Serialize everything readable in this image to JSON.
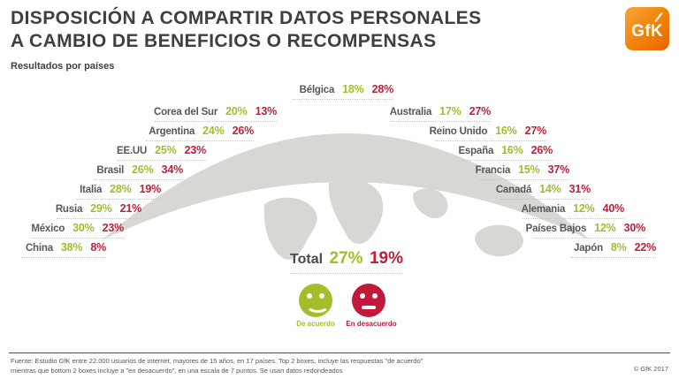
{
  "header": {
    "title_line1": "DISPOSICIÓN A COMPARTIR DATOS PERSONALES",
    "title_line2": "A CAMBIO DE BENEFICIOS O RECOMPENSAS",
    "subtitle": "Resultados por países",
    "logo_text": "GfK"
  },
  "chart_data": {
    "type": "table",
    "title": "Disposición a compartir datos personales a cambio de beneficios o recompensas",
    "subtitle": "Resultados por países",
    "unit": "%",
    "categories": [
      "Bélgica",
      "Corea del Sur",
      "Argentina",
      "EE.UU",
      "Brasil",
      "Italia",
      "Rusia",
      "México",
      "China",
      "Australia",
      "Reino Unido",
      "España",
      "Francia",
      "Canadá",
      "Alemania",
      "Países Bajos",
      "Japón"
    ],
    "series": [
      {
        "name": "De acuerdo",
        "color": "#A6BC2B",
        "values": [
          18,
          20,
          24,
          25,
          26,
          28,
          29,
          30,
          38,
          17,
          16,
          16,
          15,
          14,
          12,
          12,
          8
        ]
      },
      {
        "name": "En desacuerdo",
        "color": "#C21E39",
        "values": [
          28,
          13,
          26,
          23,
          34,
          19,
          21,
          23,
          8,
          27,
          27,
          26,
          37,
          31,
          40,
          30,
          22
        ]
      }
    ],
    "total": {
      "label": "Total",
      "agree": 27,
      "disagree": 19
    },
    "legend": [
      {
        "label": "De acuerdo",
        "color": "#A6BC2B",
        "icon": "smiley-happy"
      },
      {
        "label": "En desacuerdo",
        "color": "#C21E39",
        "icon": "smiley-unhappy"
      }
    ],
    "layout_hint": "country labels arranged around grey world map, agree value green, disagree value red"
  },
  "footer": {
    "line1": "Fuente: Estudio GfK entre 22.000 usuarios de internet, mayores de 15 años, en 17 países. Top 2 boxes, incluye las respuestas \"de acuerdo\"",
    "line2": "mientras que bottom 2 boxes incluye a \"en desacuerdo\", en una escala de 7 puntos. Se usan datos redondeados",
    "copyright": "© GfK 2017"
  },
  "colors": {
    "agree_green": "#A6BC2B",
    "disagree_red": "#C21E39",
    "label_grey": "#575756",
    "map_grey": "#D9D7D4",
    "logo_orange": "#EE7203"
  }
}
